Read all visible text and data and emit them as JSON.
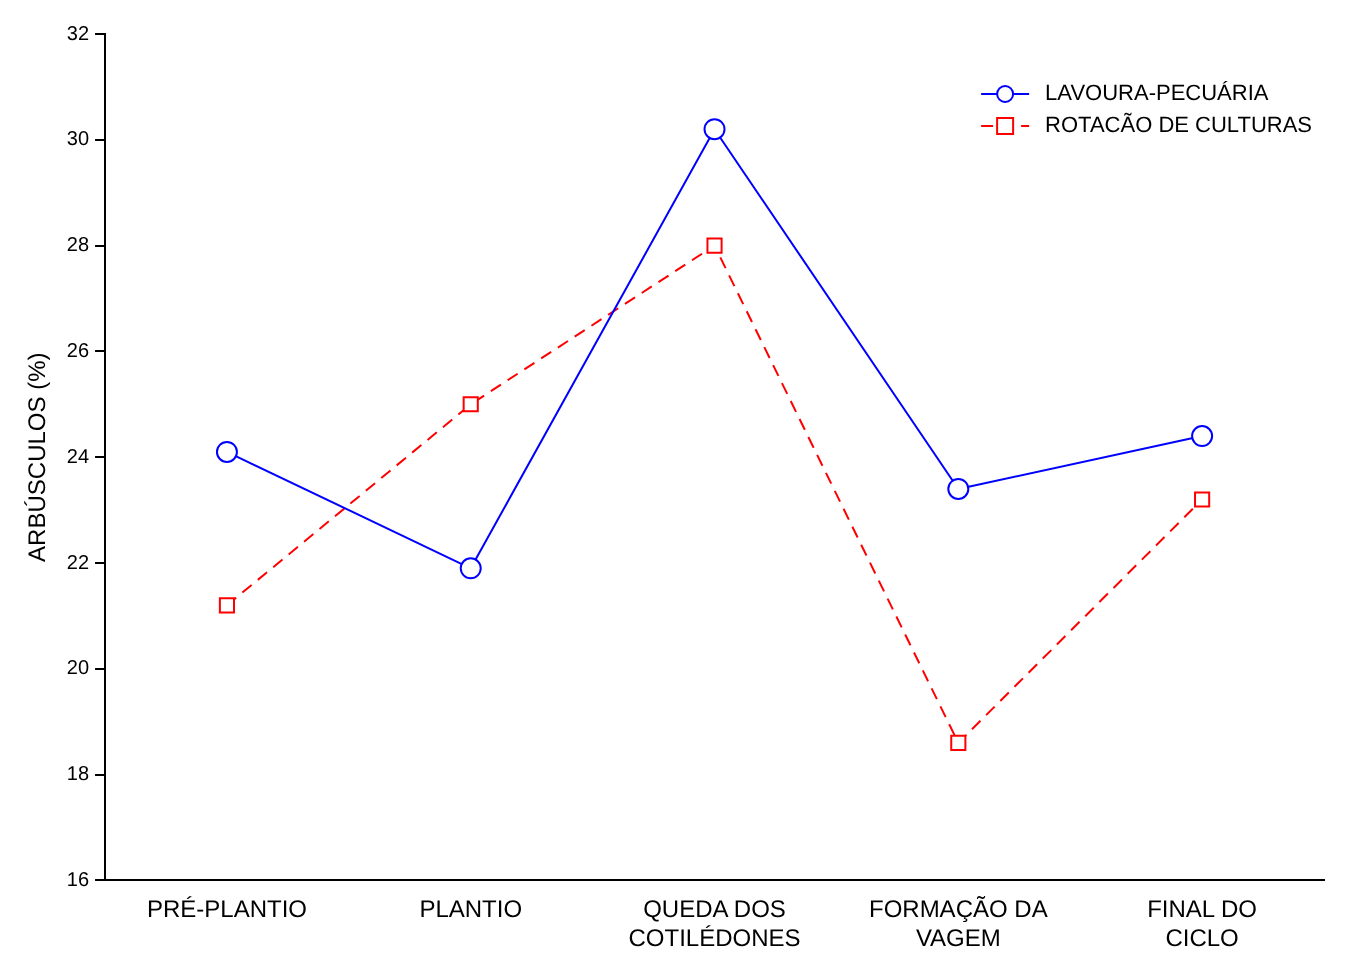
{
  "chart_data": {
    "type": "line",
    "ylabel": "ARBÚSCULOS (%)",
    "categories": [
      "PRÉ-PLANTIO",
      "PLANTIO",
      "QUEDA DOS COTILÉDONES",
      "FORMAÇÃO DA VAGEM",
      "FINAL DO CICLO"
    ],
    "ylim": [
      16,
      32
    ],
    "yticks": [
      16,
      18,
      20,
      22,
      24,
      26,
      28,
      30,
      32
    ],
    "grid": false,
    "legend": "top right",
    "series": [
      {
        "name": "LAVOURA-PECUÁRIA",
        "color": "#0000ff",
        "marker": "circle",
        "line_style": "solid",
        "values": [
          24.1,
          21.9,
          30.2,
          23.4,
          24.4
        ]
      },
      {
        "name": "ROTACÃO DE CULTURAS",
        "color": "#ff0000",
        "marker": "square",
        "line_style": "dashed",
        "values": [
          21.2,
          25.0,
          28.0,
          18.6,
          23.2
        ]
      }
    ]
  }
}
